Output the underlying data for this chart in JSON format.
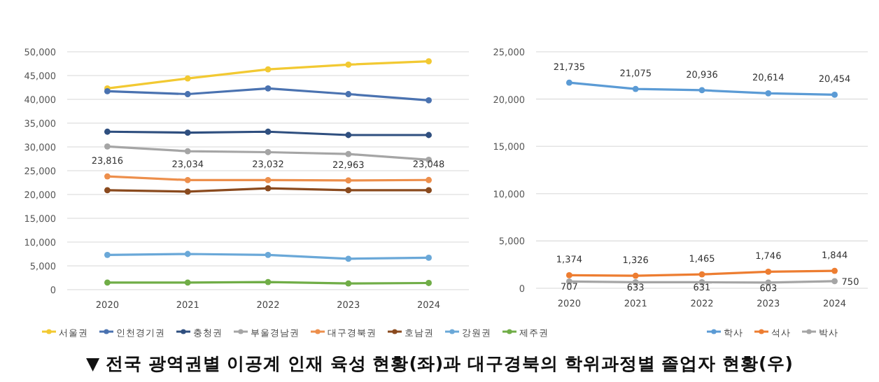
{
  "chart_data": [
    {
      "type": "line",
      "categories": [
        "2020",
        "2021",
        "2022",
        "2023",
        "2024"
      ],
      "ylim": [
        0,
        50000
      ],
      "yticks": [
        {
          "value": 0,
          "label": "0"
        },
        {
          "value": 5000,
          "label": "5,000"
        },
        {
          "value": 10000,
          "label": "10,000"
        },
        {
          "value": 15000,
          "label": "15,000"
        },
        {
          "value": 20000,
          "label": "20,000"
        },
        {
          "value": 25000,
          "label": "25,000"
        },
        {
          "value": 30000,
          "label": "30,000"
        },
        {
          "value": 35000,
          "label": "35,000"
        },
        {
          "value": 40000,
          "label": "40,000"
        },
        {
          "value": 45000,
          "label": "45,000"
        },
        {
          "value": 50000,
          "label": "50,000"
        }
      ],
      "grid": "y",
      "legend": "bottom",
      "marker": "circle",
      "series": [
        {
          "name": "서울권",
          "color": "#f2c932",
          "values": [
            42300,
            44400,
            46300,
            47300,
            48000
          ]
        },
        {
          "name": "인천경기권",
          "color": "#4a72b0",
          "values": [
            41700,
            41100,
            42300,
            41100,
            39800
          ]
        },
        {
          "name": "충청권",
          "color": "#2f4f7f",
          "values": [
            33200,
            33000,
            33200,
            32500,
            32500
          ]
        },
        {
          "name": "부울경남권",
          "color": "#a5a5a5",
          "values": [
            30100,
            29100,
            28900,
            28500,
            27300
          ]
        },
        {
          "name": "대구경북권",
          "color": "#ed8f4c",
          "values": [
            23816,
            23034,
            23032,
            22963,
            23048
          ],
          "value_labels": [
            "23,816",
            "23,034",
            "23,032",
            "22,963",
            "23,048"
          ]
        },
        {
          "name": "호남권",
          "color": "#8a4a1e",
          "values": [
            20900,
            20600,
            21300,
            20900,
            20900
          ]
        },
        {
          "name": "강원권",
          "color": "#6aa8d8",
          "values": [
            7300,
            7500,
            7300,
            6500,
            6700
          ]
        },
        {
          "name": "제주권",
          "color": "#70ad47",
          "values": [
            1500,
            1500,
            1600,
            1300,
            1400
          ]
        }
      ],
      "annotations": [
        "▼ 전국 광역권별 이공계 인재 육성 현황(좌)과 대구경북의 학위과정별 졸업자 현황(우)"
      ]
    },
    {
      "type": "line",
      "categories": [
        "2020",
        "2021",
        "2022",
        "2023",
        "2024"
      ],
      "ylim": [
        0,
        25000
      ],
      "yticks": [
        {
          "value": 0,
          "label": "0"
        },
        {
          "value": 5000,
          "label": "5,000"
        },
        {
          "value": 10000,
          "label": "10,000"
        },
        {
          "value": 15000,
          "label": "15,000"
        },
        {
          "value": 20000,
          "label": "20,000"
        },
        {
          "value": 25000,
          "label": "25,000"
        }
      ],
      "grid": "y",
      "legend": "bottom",
      "marker": "circle",
      "series": [
        {
          "name": "학사",
          "color": "#5b9bd5",
          "values": [
            21735,
            21075,
            20936,
            20614,
            20454
          ],
          "value_labels": [
            "21,735",
            "21,075",
            "20,936",
            "20,614",
            "20,454"
          ]
        },
        {
          "name": "석사",
          "color": "#ed7d31",
          "values": [
            1374,
            1326,
            1465,
            1746,
            1844
          ],
          "value_labels": [
            "1,374",
            "1,326",
            "1,465",
            "1,746",
            "1,844"
          ]
        },
        {
          "name": "박사",
          "color": "#a5a5a5",
          "values": [
            707,
            633,
            631,
            603,
            750
          ],
          "value_labels": [
            "707",
            "633",
            "631",
            "603",
            "750"
          ]
        }
      ]
    }
  ]
}
